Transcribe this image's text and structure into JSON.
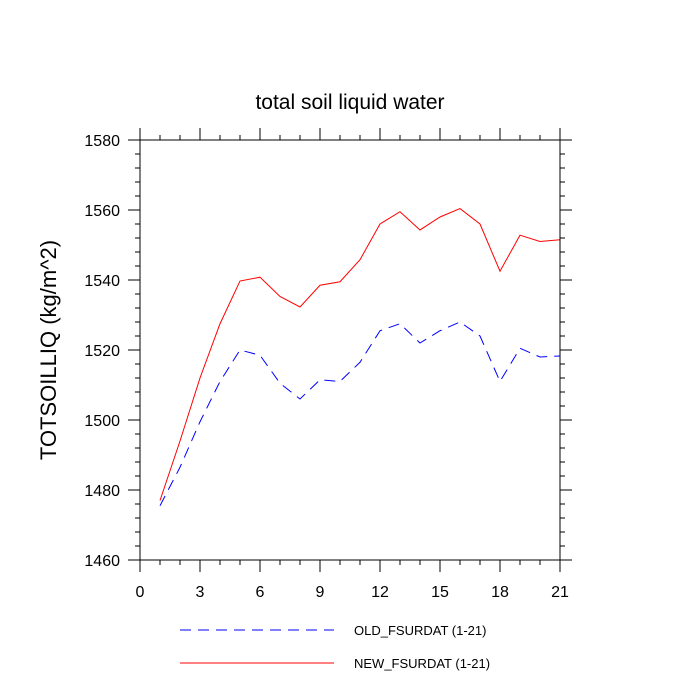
{
  "chart_data": {
    "type": "line",
    "title": "total soil liquid water",
    "xlabel": "",
    "ylabel": "TOTSOILLIQ  (kg/m^2)",
    "xlim": [
      0,
      21
    ],
    "ylim": [
      1460,
      1580
    ],
    "x_ticks": [
      0,
      3,
      6,
      9,
      12,
      15,
      18,
      21
    ],
    "y_ticks": [
      1460,
      1480,
      1500,
      1520,
      1540,
      1560,
      1580
    ],
    "grid": false,
    "legend_position": "bottom",
    "x": [
      1,
      2,
      3,
      4,
      5,
      6,
      7,
      8,
      9,
      10,
      11,
      12,
      13,
      14,
      15,
      16,
      17,
      18,
      19,
      20,
      21
    ],
    "series": [
      {
        "name": "OLD_FSURDAT (1-21)",
        "color": "#0000ff",
        "style": "dashed",
        "values": [
          1475.5,
          1486.5,
          1499.5,
          1511,
          1520,
          1518.5,
          1510.5,
          1506,
          1511.5,
          1511,
          1516.5,
          1525.5,
          1527.5,
          1522,
          1525.5,
          1528,
          1524,
          1511,
          1520.5,
          1518,
          1518.3
        ]
      },
      {
        "name": "NEW_FSURDAT (1-21)",
        "color": "#ff0000",
        "style": "solid",
        "values": [
          1477,
          1494,
          1512,
          1527.5,
          1539.7,
          1540.8,
          1535.3,
          1532.3,
          1538.5,
          1539.5,
          1545.8,
          1556,
          1559.5,
          1554.3,
          1558,
          1560.4,
          1556,
          1542.5,
          1552.8,
          1551,
          1551.5
        ]
      }
    ]
  }
}
